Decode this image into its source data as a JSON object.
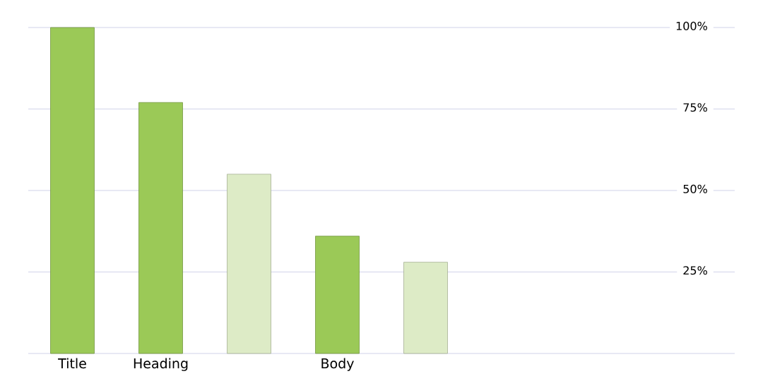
{
  "chart_data": {
    "type": "bar",
    "categories": [
      "Title",
      "Heading",
      null,
      "Body",
      null,
      null,
      null,
      null
    ],
    "values": [
      100,
      77,
      55,
      36,
      28,
      null,
      null,
      null
    ],
    "colors": [
      "#9bc957",
      "#9bc957",
      "#ddebc6",
      "#9bc957",
      "#ddebc6",
      "#9bc957",
      "#9bc957",
      "#9bc957"
    ],
    "ylim": [
      0,
      100
    ],
    "yticks": [
      {
        "value": 0,
        "label": null
      },
      {
        "value": 25,
        "label": "25%"
      },
      {
        "value": 50,
        "label": "50%"
      },
      {
        "value": 75,
        "label": "75%"
      },
      {
        "value": 100,
        "label": "100%"
      }
    ],
    "grid": "y"
  }
}
